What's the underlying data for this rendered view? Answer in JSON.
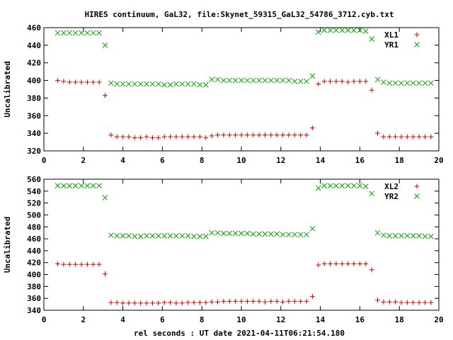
{
  "title": "HIRES continuum, GaL32, file:Skynet_59315_GaL32_54786_3712.cyb.txt",
  "xlabel": "rel seconds : UT date 2021-04-11T06:21:54.180",
  "colors": {
    "red_series": "#cc0000",
    "green_series": "#00a000",
    "axes": "#000000"
  },
  "chart_data": [
    {
      "type": "scatter",
      "ylabel": "Uncalibrated",
      "xlim": [
        0,
        20
      ],
      "ylim": [
        320,
        460
      ],
      "xticks": [
        0,
        2,
        4,
        6,
        8,
        10,
        12,
        14,
        16,
        18,
        20
      ],
      "yticks": [
        320,
        340,
        360,
        380,
        400,
        420,
        440,
        460
      ],
      "legend_position": "top-right",
      "series": [
        {
          "name": "XL1",
          "marker": "plus",
          "color": "#cc0000",
          "x": [
            0.7,
            1.0,
            1.3,
            1.6,
            1.9,
            2.2,
            2.5,
            2.8,
            3.1,
            3.4,
            3.7,
            4.0,
            4.3,
            4.6,
            4.9,
            5.2,
            5.5,
            5.8,
            6.1,
            6.4,
            6.7,
            7.0,
            7.3,
            7.6,
            7.9,
            8.2,
            8.5,
            8.8,
            9.1,
            9.4,
            9.7,
            10.0,
            10.3,
            10.6,
            10.9,
            11.2,
            11.5,
            11.8,
            12.1,
            12.4,
            12.7,
            13.0,
            13.3,
            13.6,
            13.9,
            14.2,
            14.5,
            14.8,
            15.1,
            15.4,
            15.7,
            16.0,
            16.3,
            16.6,
            16.9,
            17.2,
            17.5,
            17.8,
            18.1,
            18.4,
            18.7,
            19.0,
            19.3,
            19.6
          ],
          "y": [
            400,
            399,
            398,
            398,
            398,
            398,
            398,
            398,
            383,
            338,
            336,
            336,
            336,
            335,
            335,
            336,
            335,
            335,
            336,
            336,
            336,
            336,
            336,
            336,
            336,
            335,
            337,
            338,
            338,
            338,
            338,
            338,
            338,
            338,
            338,
            338,
            338,
            338,
            338,
            338,
            338,
            338,
            338,
            346,
            396,
            399,
            399,
            399,
            399,
            398,
            399,
            399,
            399,
            389,
            340,
            336,
            336,
            336,
            336,
            336,
            336,
            336,
            336,
            336
          ]
        },
        {
          "name": "YR1",
          "marker": "cross",
          "color": "#00a000",
          "x": [
            0.7,
            1.0,
            1.3,
            1.6,
            1.9,
            2.2,
            2.5,
            2.8,
            3.1,
            3.4,
            3.7,
            4.0,
            4.3,
            4.6,
            4.9,
            5.2,
            5.5,
            5.8,
            6.1,
            6.4,
            6.7,
            7.0,
            7.3,
            7.6,
            7.9,
            8.2,
            8.5,
            8.8,
            9.1,
            9.4,
            9.7,
            10.0,
            10.3,
            10.6,
            10.9,
            11.2,
            11.5,
            11.8,
            12.1,
            12.4,
            12.7,
            13.0,
            13.3,
            13.6,
            13.9,
            14.2,
            14.5,
            14.8,
            15.1,
            15.4,
            15.7,
            16.0,
            16.3,
            16.6,
            16.9,
            17.2,
            17.5,
            17.8,
            18.1,
            18.4,
            18.7,
            19.0,
            19.3,
            19.6
          ],
          "y": [
            454,
            454,
            454,
            454,
            454,
            454,
            454,
            454,
            440,
            397,
            396,
            396,
            396,
            396,
            396,
            396,
            396,
            396,
            395,
            395,
            396,
            396,
            396,
            396,
            395,
            395,
            401,
            401,
            400,
            400,
            400,
            400,
            400,
            400,
            400,
            400,
            400,
            400,
            400,
            400,
            399,
            399,
            399,
            405,
            455,
            457,
            457,
            457,
            457,
            457,
            457,
            457,
            456,
            447,
            401,
            398,
            397,
            397,
            397,
            397,
            397,
            397,
            397,
            397
          ]
        }
      ]
    },
    {
      "type": "scatter",
      "ylabel": "Uncalibrated",
      "xlim": [
        0,
        20
      ],
      "ylim": [
        340,
        560
      ],
      "xticks": [
        0,
        2,
        4,
        6,
        8,
        10,
        12,
        14,
        16,
        18,
        20
      ],
      "yticks": [
        340,
        360,
        380,
        400,
        420,
        440,
        460,
        480,
        500,
        520,
        540,
        560
      ],
      "legend_position": "top-right",
      "series": [
        {
          "name": "XL2",
          "marker": "plus",
          "color": "#cc0000",
          "x": [
            0.7,
            1.0,
            1.3,
            1.6,
            1.9,
            2.2,
            2.5,
            2.8,
            3.1,
            3.4,
            3.7,
            4.0,
            4.3,
            4.6,
            4.9,
            5.2,
            5.5,
            5.8,
            6.1,
            6.4,
            6.7,
            7.0,
            7.3,
            7.6,
            7.9,
            8.2,
            8.5,
            8.8,
            9.1,
            9.4,
            9.7,
            10.0,
            10.3,
            10.6,
            10.9,
            11.2,
            11.5,
            11.8,
            12.1,
            12.4,
            12.7,
            13.0,
            13.3,
            13.6,
            13.9,
            14.2,
            14.5,
            14.8,
            15.1,
            15.4,
            15.7,
            16.0,
            16.3,
            16.6,
            16.9,
            17.2,
            17.5,
            17.8,
            18.1,
            18.4,
            18.7,
            19.0,
            19.3,
            19.6
          ],
          "y": [
            418,
            417,
            417,
            417,
            417,
            417,
            417,
            417,
            401,
            353,
            353,
            352,
            352,
            352,
            352,
            352,
            352,
            352,
            353,
            353,
            352,
            352,
            353,
            353,
            353,
            353,
            354,
            354,
            355,
            355,
            355,
            355,
            355,
            355,
            355,
            354,
            355,
            355,
            354,
            355,
            355,
            355,
            355,
            363,
            416,
            418,
            418,
            418,
            418,
            418,
            418,
            418,
            418,
            408,
            357,
            354,
            354,
            354,
            353,
            353,
            353,
            353,
            353,
            353
          ]
        },
        {
          "name": "YR2",
          "marker": "cross",
          "color": "#00a000",
          "x": [
            0.7,
            1.0,
            1.3,
            1.6,
            1.9,
            2.2,
            2.5,
            2.8,
            3.1,
            3.4,
            3.7,
            4.0,
            4.3,
            4.6,
            4.9,
            5.2,
            5.5,
            5.8,
            6.1,
            6.4,
            6.7,
            7.0,
            7.3,
            7.6,
            7.9,
            8.2,
            8.5,
            8.8,
            9.1,
            9.4,
            9.7,
            10.0,
            10.3,
            10.6,
            10.9,
            11.2,
            11.5,
            11.8,
            12.1,
            12.4,
            12.7,
            13.0,
            13.3,
            13.6,
            13.9,
            14.2,
            14.5,
            14.8,
            15.1,
            15.4,
            15.7,
            16.0,
            16.3,
            16.6,
            16.9,
            17.2,
            17.5,
            17.8,
            18.1,
            18.4,
            18.7,
            19.0,
            19.3,
            19.6
          ],
          "y": [
            549,
            549,
            549,
            549,
            549,
            549,
            549,
            549,
            529,
            466,
            465,
            465,
            465,
            464,
            464,
            465,
            465,
            465,
            465,
            465,
            465,
            465,
            465,
            464,
            464,
            464,
            470,
            470,
            469,
            469,
            469,
            469,
            469,
            468,
            468,
            468,
            468,
            468,
            467,
            467,
            467,
            467,
            467,
            477,
            545,
            549,
            549,
            549,
            549,
            549,
            549,
            549,
            548,
            536,
            470,
            466,
            465,
            465,
            465,
            465,
            465,
            465,
            464,
            464
          ]
        }
      ]
    }
  ]
}
